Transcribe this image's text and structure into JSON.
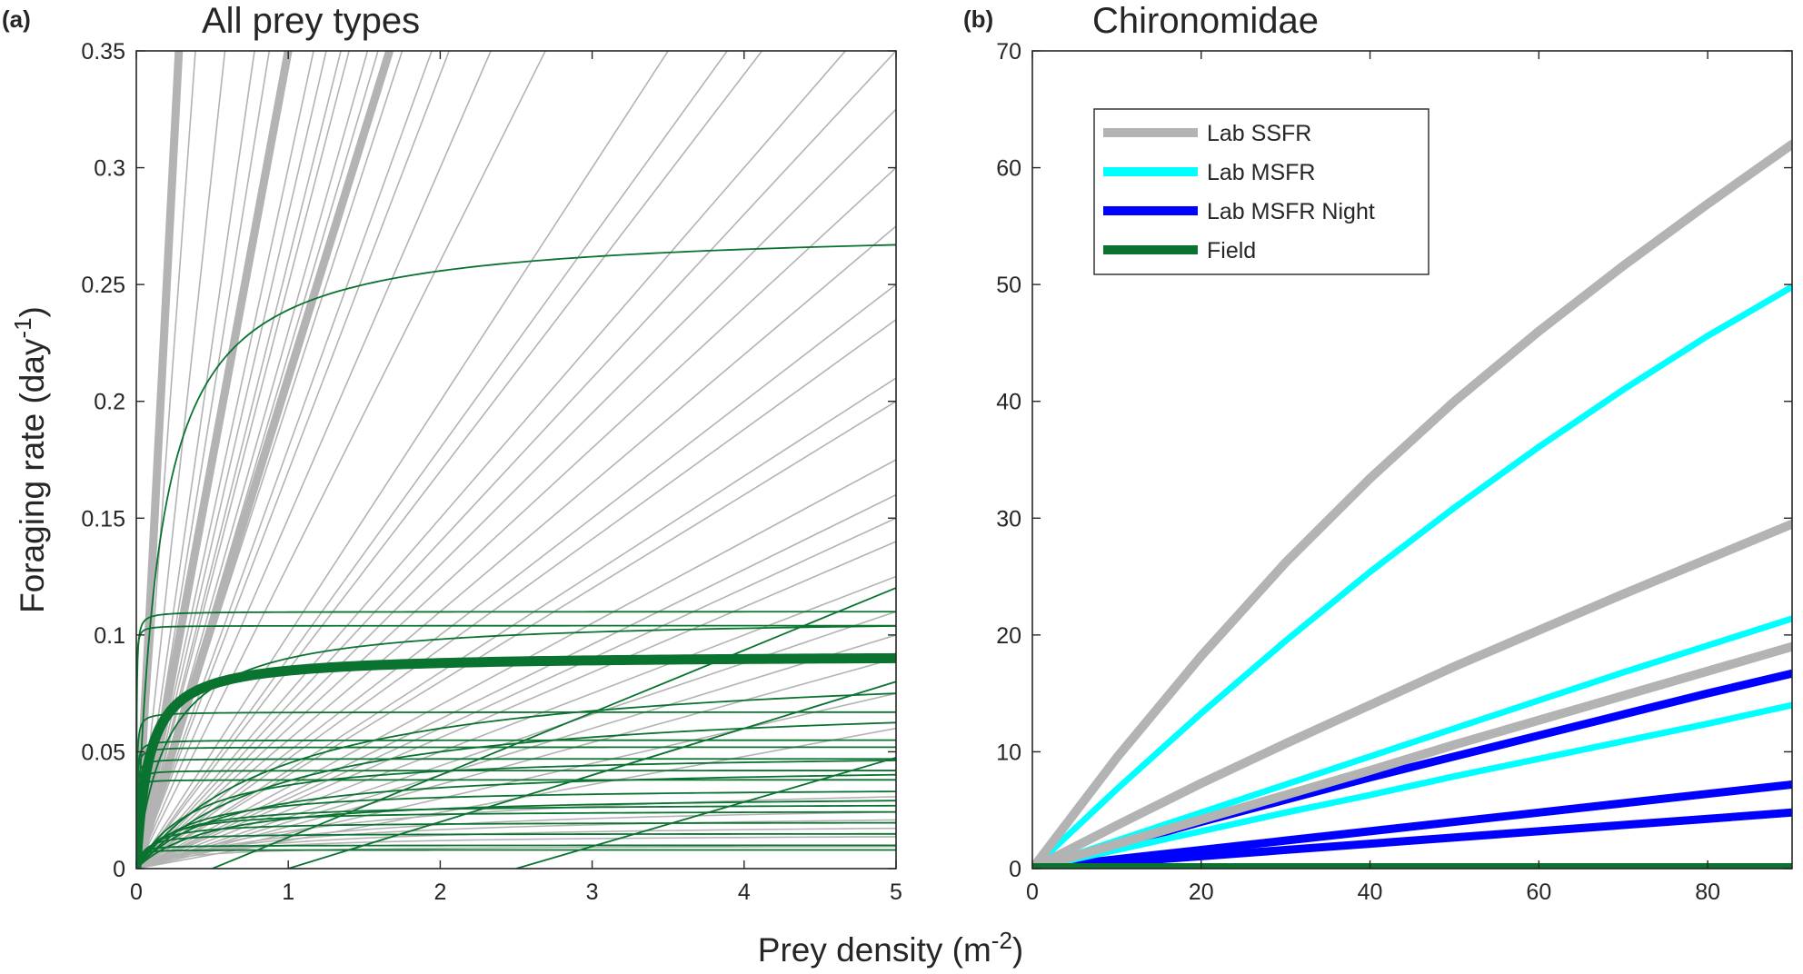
{
  "colors": {
    "lab_ssfr": "#b3b3b3",
    "lab_msfr": "#00ffff",
    "lab_msfr_night": "#0000ff",
    "field": "#0a7330",
    "axis": "#262626",
    "background": "#ffffff"
  },
  "xlabel_main": "Prey density (m",
  "xlabel_sup": "-2",
  "xlabel_end": ")",
  "chart_data": [
    {
      "type": "line",
      "panel_label": "(a)",
      "title": "All prey types",
      "ylabel_main": "Foraging rate (day",
      "ylabel_sup": "-1",
      "ylabel_end": ")",
      "xlim": [
        0,
        5
      ],
      "ylim": [
        0,
        0.35
      ],
      "xticks": [
        "0",
        "1",
        "2",
        "3",
        "4",
        "5"
      ],
      "yticks": [
        "0",
        "0.05",
        "0.1",
        "0.15",
        "0.2",
        "0.25",
        "0.3",
        "0.35"
      ],
      "grid": false,
      "legend": "none",
      "lab_linear_slopes": [
        0.9,
        0.6,
        0.45,
        0.4,
        0.3,
        0.28,
        0.26,
        0.25,
        0.23,
        0.22,
        0.2,
        0.18,
        0.17,
        0.15,
        0.13,
        0.1,
        0.09,
        0.085,
        0.075,
        0.07,
        0.065,
        0.06,
        0.055,
        0.05,
        0.047,
        0.042,
        0.04,
        0.035,
        0.032,
        0.03,
        0.028,
        0.025,
        0.022,
        0.02,
        0.018,
        0.015,
        0.012
      ],
      "lab_saturating": [
        {
          "a": 0.04,
          "half": 1.5
        },
        {
          "a": 0.03,
          "half": 1.2
        },
        {
          "a": 0.025,
          "half": 1.0
        },
        {
          "a": 0.02,
          "half": 0.8
        },
        {
          "a": 0.015,
          "half": 0.5
        },
        {
          "a": 0.01,
          "half": 0.3
        }
      ],
      "lab_thick_slopes": [
        1.25,
        0.35,
        0.21
      ],
      "field_saturating": [
        {
          "a": 0.275,
          "half": 0.15
        },
        {
          "a": 0.11,
          "half": 0.002
        },
        {
          "a": 0.108,
          "half": 0.2
        },
        {
          "a": 0.104,
          "half": 0.001
        },
        {
          "a": 0.09,
          "half": 1.0
        },
        {
          "a": 0.075,
          "half": 1.0
        },
        {
          "a": 0.067,
          "half": 0.003
        },
        {
          "a": 0.055,
          "half": 0.003
        },
        {
          "a": 0.052,
          "half": 0.003
        },
        {
          "a": 0.05,
          "half": 0.4
        },
        {
          "a": 0.047,
          "half": 0.003
        },
        {
          "a": 0.045,
          "half": 0.6
        },
        {
          "a": 0.042,
          "half": 0.003
        },
        {
          "a": 0.038,
          "half": 0.002
        },
        {
          "a": 0.035,
          "half": 0.3
        },
        {
          "a": 0.032,
          "half": 0.5
        },
        {
          "a": 0.028,
          "half": 0.2
        },
        {
          "a": 0.025,
          "half": 0.15
        },
        {
          "a": 0.02,
          "half": 0.1
        },
        {
          "a": 0.015,
          "half": 0.05
        },
        {
          "a": 0.01,
          "half": 0.02
        },
        {
          "a": 0.008,
          "half": 0.01
        }
      ],
      "field_linear": [
        {
          "x0": 0.5,
          "slope": 0.0267
        },
        {
          "x0": 1.0,
          "slope": 0.02
        },
        {
          "x0": 2.5,
          "slope": 0.019
        }
      ],
      "field_mean": {
        "a": 0.0915,
        "half": 0.08
      }
    },
    {
      "type": "line",
      "panel_label": "(b)",
      "title": "Chironomidae",
      "xlim": [
        0,
        90
      ],
      "ylim": [
        0,
        70
      ],
      "xticks": [
        "0",
        "20",
        "40",
        "60",
        "80"
      ],
      "yticks": [
        "0",
        "10",
        "20",
        "30",
        "40",
        "50",
        "60",
        "70"
      ],
      "grid": false,
      "legend": "top-left",
      "legend_entries": [
        "Lab SSFR",
        "Lab MSFR",
        "Lab MSFR Night",
        "Field"
      ],
      "series": [
        {
          "name": "Lab SSFR",
          "x": [
            0,
            10,
            20,
            30,
            40,
            50,
            60,
            70,
            80,
            90
          ],
          "y": [
            0,
            9.5,
            18.2,
            26.2,
            33.4,
            40.0,
            46.0,
            51.6,
            56.9,
            62.0
          ]
        },
        {
          "name": "Lab MSFR",
          "x": [
            0,
            10,
            20,
            30,
            40,
            50,
            60,
            70,
            80,
            90
          ],
          "y": [
            0,
            6.8,
            13.3,
            19.5,
            25.4,
            30.9,
            36.1,
            41.0,
            45.6,
            49.8
          ]
        },
        {
          "x": [
            0,
            10,
            20,
            30,
            40,
            50,
            60,
            70,
            80,
            90
          ],
          "y": [
            0,
            3.7,
            7.3,
            10.7,
            14.0,
            17.3,
            20.4,
            23.5,
            26.5,
            29.5
          ]
        },
        {
          "x": [
            0,
            10,
            20,
            30,
            40,
            50,
            60,
            70,
            80,
            90
          ],
          "y": [
            0,
            2.4,
            4.8,
            7.2,
            9.6,
            12.0,
            14.4,
            16.8,
            19.1,
            21.4
          ]
        },
        {
          "x": [
            0,
            10,
            20,
            30,
            40,
            50,
            60,
            70,
            80,
            90
          ],
          "y": [
            0,
            2.1,
            4.2,
            6.3,
            8.4,
            10.6,
            12.7,
            14.8,
            16.9,
            19.0
          ]
        },
        {
          "x": [
            0,
            10,
            20,
            30,
            40,
            50,
            60,
            70,
            80,
            90
          ],
          "y": [
            0,
            1.6,
            3.2,
            4.8,
            6.3,
            7.9,
            9.4,
            10.9,
            12.4,
            14.0
          ]
        },
        {
          "name": "Lab MSFR Night",
          "x": [
            0,
            10,
            20,
            30,
            40,
            50,
            60,
            70,
            80,
            90
          ],
          "y": [
            0,
            2.0,
            4.0,
            5.9,
            7.8,
            9.6,
            11.4,
            13.2,
            15.0,
            16.7
          ]
        },
        {
          "x": [
            0,
            10,
            20,
            30,
            40,
            50,
            60,
            70,
            80,
            90
          ],
          "y": [
            0,
            0.8,
            1.6,
            2.4,
            3.2,
            4.0,
            4.8,
            5.6,
            6.4,
            7.2
          ]
        },
        {
          "x": [
            0,
            10,
            20,
            30,
            40,
            50,
            60,
            70,
            80,
            90
          ],
          "y": [
            0,
            0.53,
            1.06,
            1.6,
            2.13,
            2.66,
            3.2,
            3.73,
            4.26,
            4.8
          ]
        },
        {
          "name": "Field",
          "x": [
            0,
            90
          ],
          "y": [
            0,
            0
          ]
        }
      ]
    }
  ]
}
